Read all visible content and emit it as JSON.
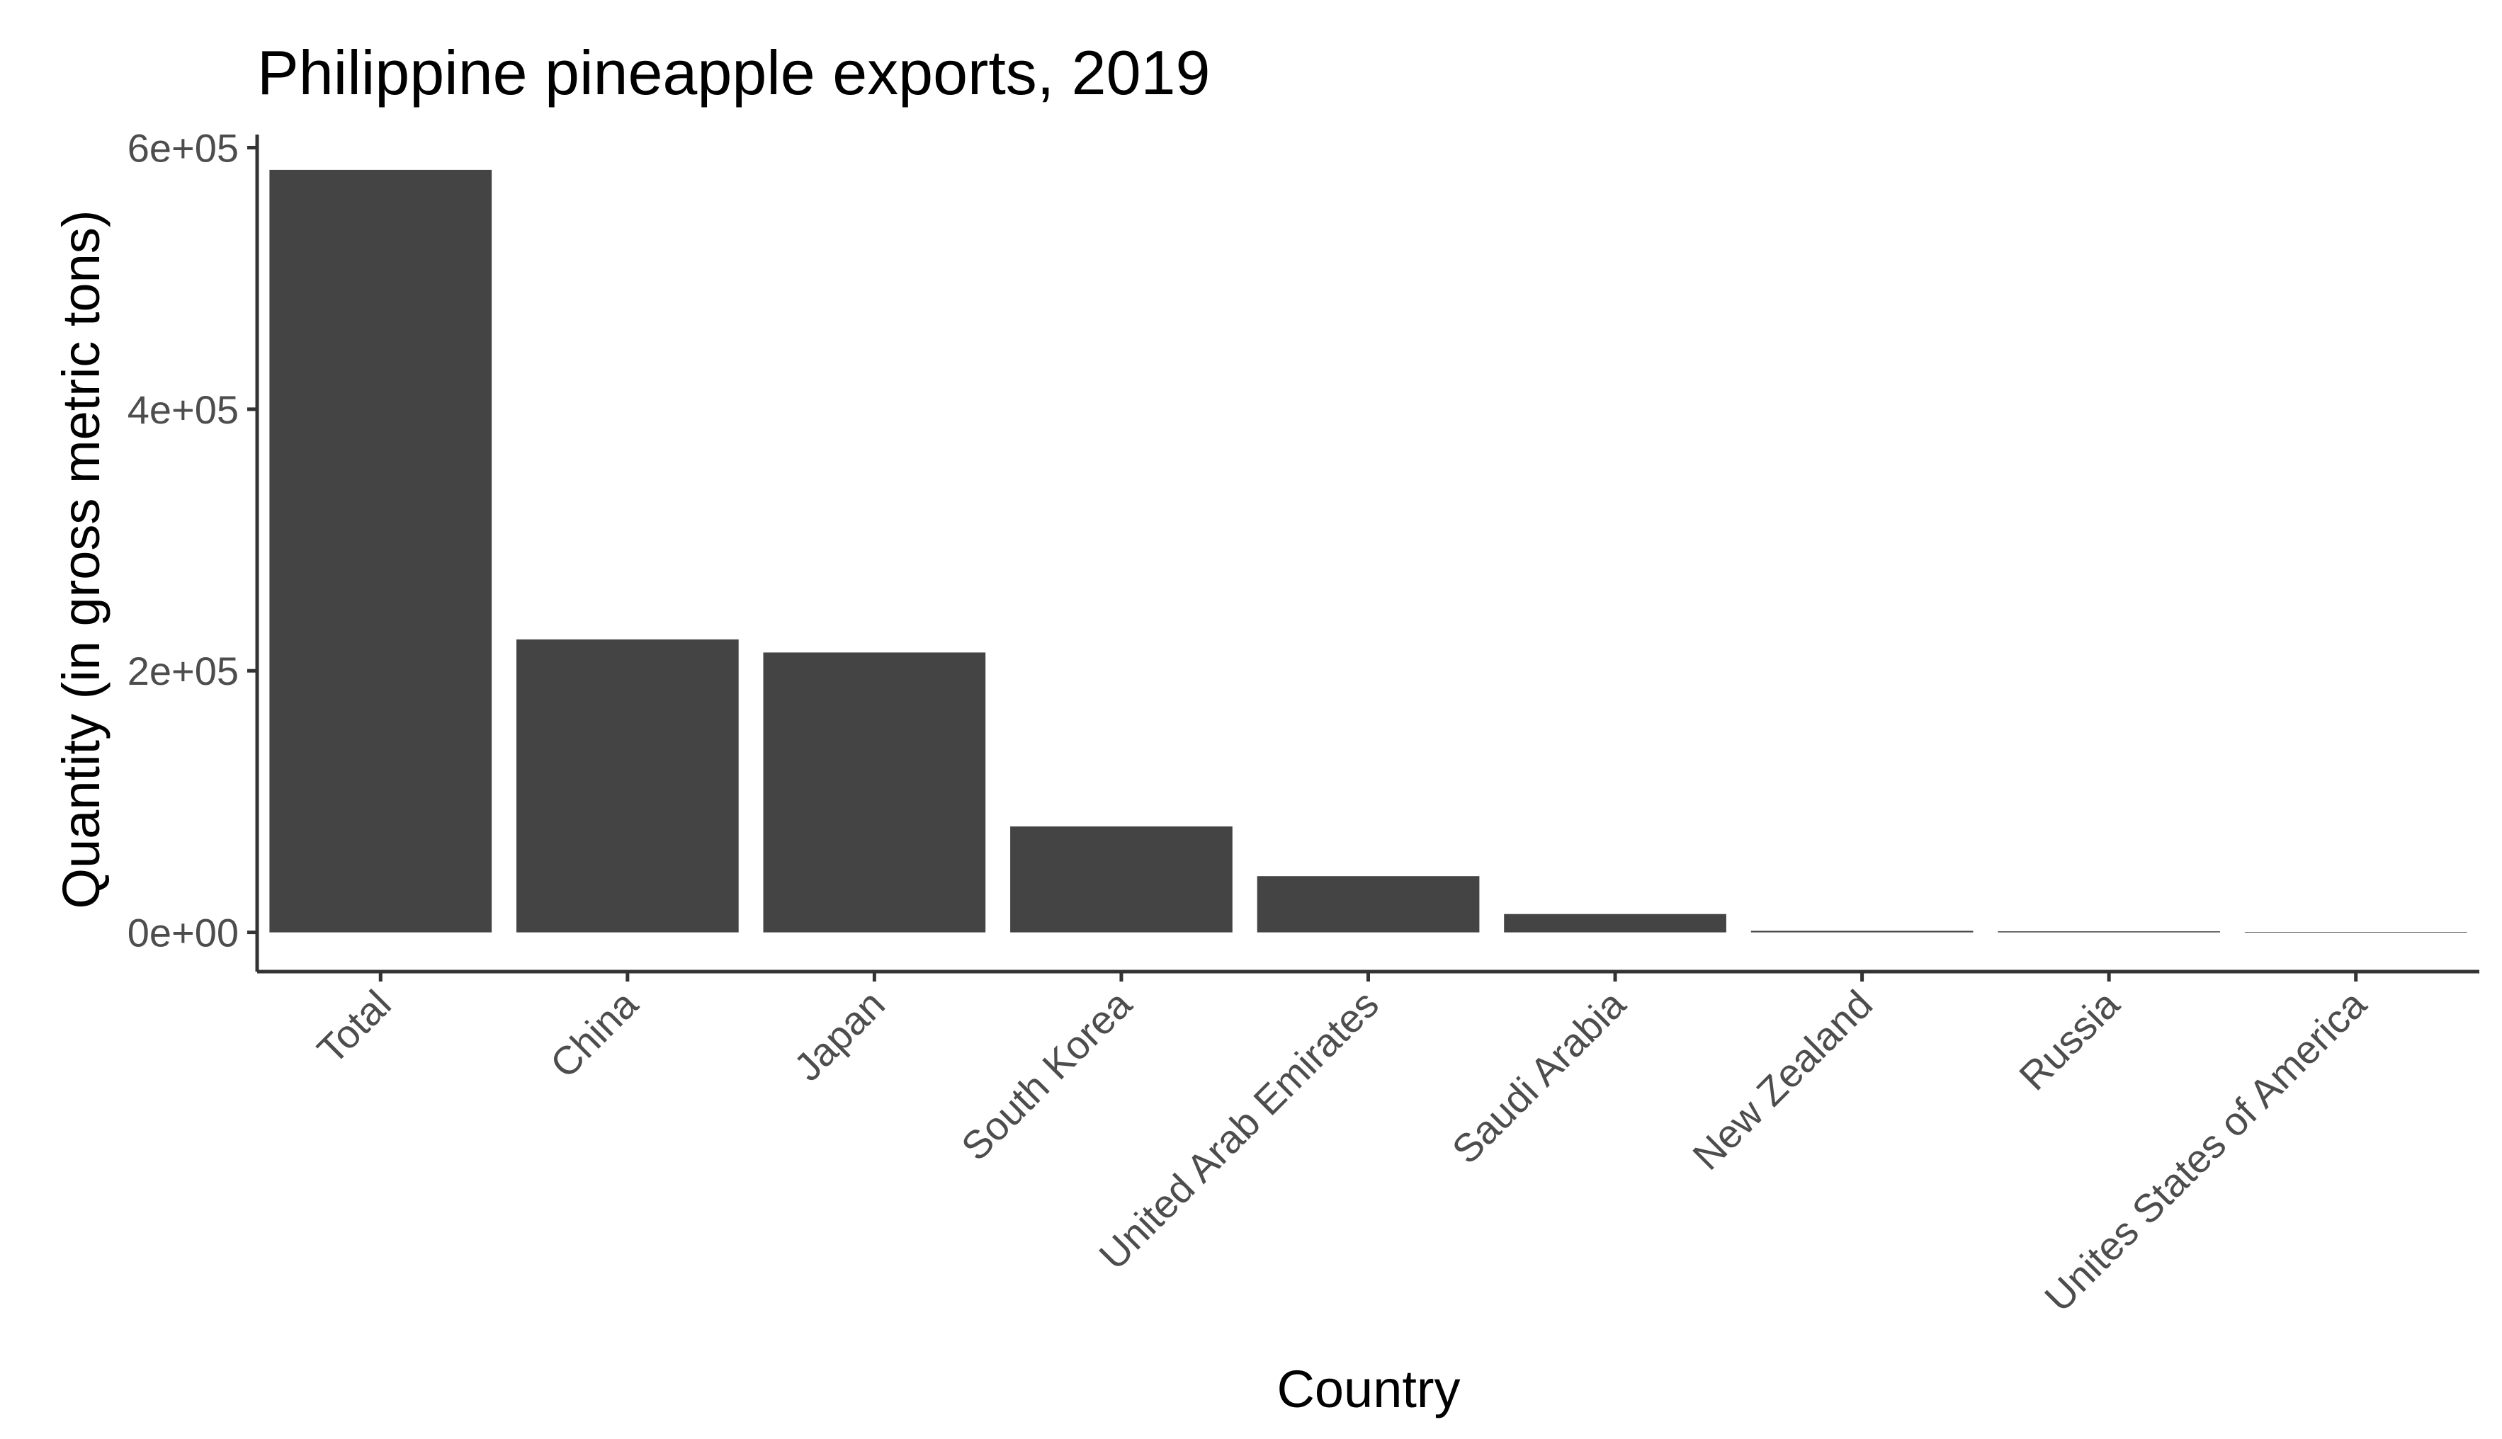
{
  "chart_data": {
    "type": "bar",
    "title": "Philippine pineapple exports, 2019",
    "xlabel": "Country",
    "ylabel": "Quantity (in gross metric tons)",
    "categories": [
      "Total",
      "China",
      "Japan",
      "South Korea",
      "United Arab Emirates",
      "Saudi Arabia",
      "New Zealand",
      "Russia",
      "Unites States of America"
    ],
    "values": [
      583000,
      224000,
      214000,
      81000,
      43000,
      14000,
      1200,
      800,
      300
    ],
    "ylim": [
      -30000,
      610000
    ],
    "yticks": [
      0,
      200000,
      400000,
      600000
    ],
    "ytick_labels": [
      "0e+00",
      "2e+05",
      "4e+05",
      "6e+05"
    ],
    "grid": false,
    "legend": "none",
    "bar_color": "#444444",
    "axis_color": "#333333"
  }
}
